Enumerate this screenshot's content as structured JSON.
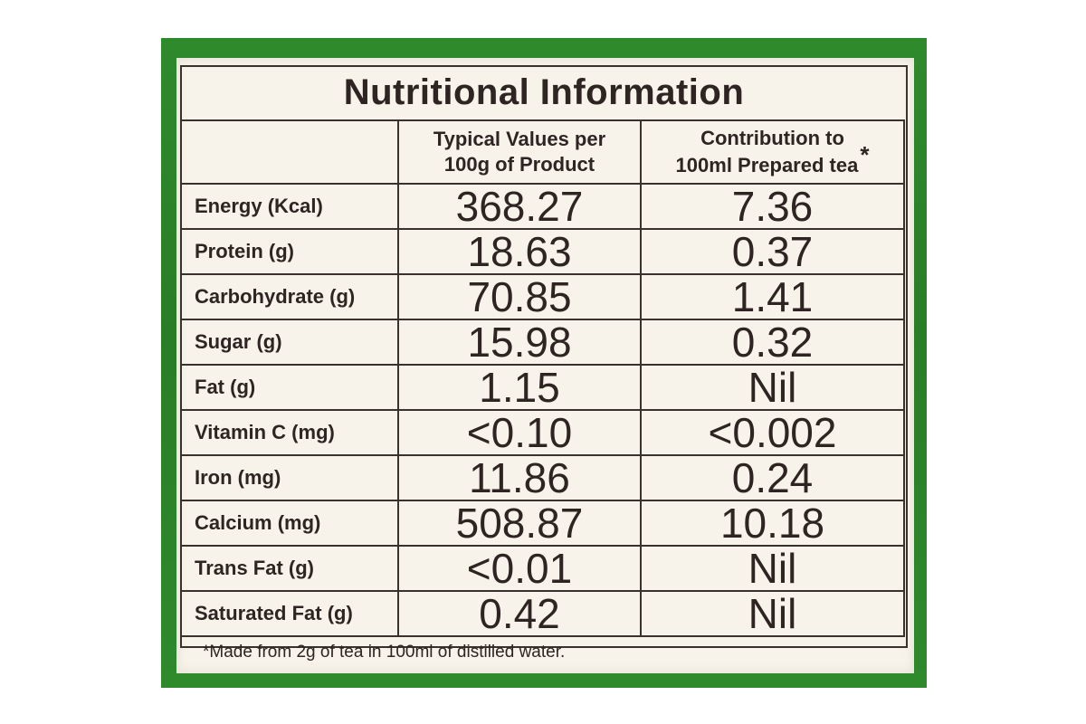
{
  "colors": {
    "packaging_green": "#2f8a2c",
    "label_background": "#f7f3ea",
    "ink": "#2e2422"
  },
  "title": "Nutritional Information",
  "columns": {
    "typical": [
      "Typical Values per",
      "100g of Product"
    ],
    "contribution": [
      "Contribution to",
      "100ml Prepared tea"
    ],
    "contribution_marker": "*"
  },
  "rows": [
    {
      "nutrient": "Energy (Kcal)",
      "per_100g": "368.27",
      "per_100ml": "7.36"
    },
    {
      "nutrient": "Protein (g)",
      "per_100g": "18.63",
      "per_100ml": "0.37"
    },
    {
      "nutrient": "Carbohydrate (g)",
      "per_100g": "70.85",
      "per_100ml": "1.41"
    },
    {
      "nutrient": "Sugar (g)",
      "per_100g": "15.98",
      "per_100ml": "0.32"
    },
    {
      "nutrient": "Fat (g)",
      "per_100g": "1.15",
      "per_100ml": "Nil"
    },
    {
      "nutrient": "Vitamin C (mg)",
      "per_100g": "<0.10",
      "per_100ml": "<0.002"
    },
    {
      "nutrient": "Iron (mg)",
      "per_100g": "11.86",
      "per_100ml": "0.24"
    },
    {
      "nutrient": "Calcium (mg)",
      "per_100g": "508.87",
      "per_100ml": "10.18"
    },
    {
      "nutrient": "Trans Fat (g)",
      "per_100g": "<0.01",
      "per_100ml": "Nil"
    },
    {
      "nutrient": "Saturated Fat (g)",
      "per_100g": "0.42",
      "per_100ml": "Nil"
    }
  ],
  "footnote": "*Made from 2g of tea in 100ml of distilled water."
}
